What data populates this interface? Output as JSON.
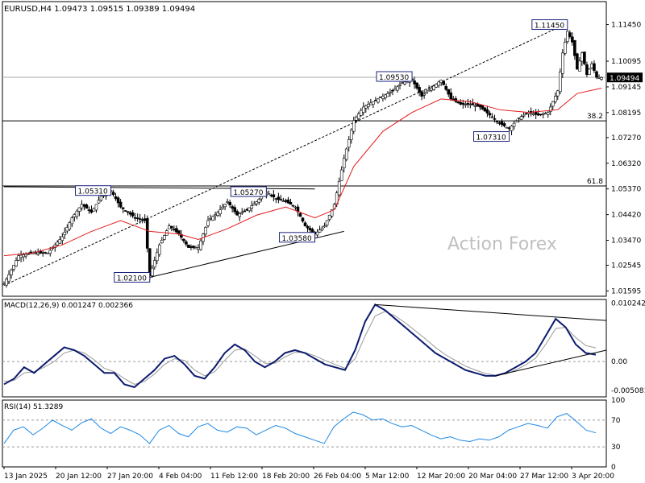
{
  "header": {
    "symbol_line": "EURUSD,H4  1.09473 1.09515 1.09389 1.09494"
  },
  "watermark": "Action Forex",
  "chart_data": [
    {
      "type": "candlestick",
      "panel": "price",
      "ylim": [
        1.014,
        1.123
      ],
      "y_ticks": [
        "1.11450",
        "1.10095",
        "1.09145",
        "1.08195",
        "1.07270",
        "1.06320",
        "1.05370",
        "1.04420",
        "1.03470",
        "1.02545",
        "1.01595"
      ],
      "y_tick_values": [
        1.1145,
        1.10095,
        1.09145,
        1.08195,
        1.0727,
        1.0632,
        1.0537,
        1.0442,
        1.0347,
        1.02545,
        1.01595
      ],
      "current_price_label": "1.09494",
      "current_price": 1.09494,
      "price_path": [
        {
          "t": 0,
          "v": 1.0185
        },
        {
          "t": 3,
          "v": 1.029
        },
        {
          "t": 6,
          "v": 1.03
        },
        {
          "t": 9,
          "v": 1.03
        },
        {
          "t": 12,
          "v": 1.036
        },
        {
          "t": 14,
          "v": 1.043
        },
        {
          "t": 16,
          "v": 1.048
        },
        {
          "t": 18,
          "v": 1.045
        },
        {
          "t": 20,
          "v": 1.051
        },
        {
          "t": 22,
          "v": 1.0531
        },
        {
          "t": 24,
          "v": 1.047
        },
        {
          "t": 27,
          "v": 1.043
        },
        {
          "t": 29,
          "v": 1.042
        },
        {
          "t": 30,
          "v": 1.0215
        },
        {
          "t": 32,
          "v": 1.033
        },
        {
          "t": 34,
          "v": 1.04
        },
        {
          "t": 36,
          "v": 1.037
        },
        {
          "t": 38,
          "v": 1.032
        },
        {
          "t": 40,
          "v": 1.032
        },
        {
          "t": 42,
          "v": 1.042
        },
        {
          "t": 44,
          "v": 1.045
        },
        {
          "t": 46,
          "v": 1.049
        },
        {
          "t": 48,
          "v": 1.044
        },
        {
          "t": 50,
          "v": 1.046
        },
        {
          "t": 52,
          "v": 1.049
        },
        {
          "t": 54,
          "v": 1.0527
        },
        {
          "t": 56,
          "v": 1.05
        },
        {
          "t": 58,
          "v": 1.049
        },
        {
          "t": 60,
          "v": 1.047
        },
        {
          "t": 62,
          "v": 1.04
        },
        {
          "t": 64,
          "v": 1.037
        },
        {
          "t": 66,
          "v": 1.04
        },
        {
          "t": 68,
          "v": 1.048
        },
        {
          "t": 70,
          "v": 1.065
        },
        {
          "t": 72,
          "v": 1.079
        },
        {
          "t": 74,
          "v": 1.084
        },
        {
          "t": 76,
          "v": 1.086
        },
        {
          "t": 78,
          "v": 1.088
        },
        {
          "t": 80,
          "v": 1.09
        },
        {
          "t": 82,
          "v": 1.093
        },
        {
          "t": 84,
          "v": 1.094
        },
        {
          "t": 86,
          "v": 1.088
        },
        {
          "t": 88,
          "v": 1.091
        },
        {
          "t": 90,
          "v": 1.094
        },
        {
          "t": 92,
          "v": 1.087
        },
        {
          "t": 94,
          "v": 1.085
        },
        {
          "t": 96,
          "v": 1.085
        },
        {
          "t": 98,
          "v": 1.084
        },
        {
          "t": 100,
          "v": 1.081
        },
        {
          "t": 102,
          "v": 1.078
        },
        {
          "t": 104,
          "v": 1.076
        },
        {
          "t": 106,
          "v": 1.08
        },
        {
          "t": 108,
          "v": 1.082
        },
        {
          "t": 110,
          "v": 1.081
        },
        {
          "t": 112,
          "v": 1.082
        },
        {
          "t": 114,
          "v": 1.09
        },
        {
          "t": 115,
          "v": 1.104
        },
        {
          "t": 116,
          "v": 1.112
        },
        {
          "t": 117,
          "v": 1.108
        },
        {
          "t": 118,
          "v": 1.098
        },
        {
          "t": 119,
          "v": 1.104
        },
        {
          "t": 120,
          "v": 1.096
        },
        {
          "t": 121,
          "v": 1.1
        },
        {
          "t": 122,
          "v": 1.095
        },
        {
          "t": 123,
          "v": 1.0949
        }
      ],
      "ma_path": [
        {
          "t": 0,
          "v": 1.029
        },
        {
          "t": 6,
          "v": 1.03
        },
        {
          "t": 12,
          "v": 1.033
        },
        {
          "t": 18,
          "v": 1.038
        },
        {
          "t": 24,
          "v": 1.042
        },
        {
          "t": 30,
          "v": 1.038
        },
        {
          "t": 36,
          "v": 1.037
        },
        {
          "t": 40,
          "v": 1.035
        },
        {
          "t": 46,
          "v": 1.039
        },
        {
          "t": 52,
          "v": 1.044
        },
        {
          "t": 58,
          "v": 1.047
        },
        {
          "t": 64,
          "v": 1.043
        },
        {
          "t": 68,
          "v": 1.046
        },
        {
          "t": 72,
          "v": 1.062
        },
        {
          "t": 78,
          "v": 1.075
        },
        {
          "t": 84,
          "v": 1.082
        },
        {
          "t": 90,
          "v": 1.087
        },
        {
          "t": 96,
          "v": 1.086
        },
        {
          "t": 102,
          "v": 1.083
        },
        {
          "t": 108,
          "v": 1.082
        },
        {
          "t": 114,
          "v": 1.083
        },
        {
          "t": 118,
          "v": 1.089
        },
        {
          "t": 123,
          "v": 1.091
        }
      ],
      "levels": [
        {
          "label": "38.2",
          "price": 1.0789
        },
        {
          "label": "61.8",
          "price": 1.0548
        },
        {
          "label": "",
          "price": 1.095
        }
      ],
      "annotations": [
        {
          "label": "1.11450",
          "t": 116,
          "price": 1.1145
        },
        {
          "label": "1.09530",
          "t": 84,
          "price": 1.0953
        },
        {
          "label": "1.07310",
          "t": 104,
          "price": 1.0731
        },
        {
          "label": "1.05310",
          "t": 22,
          "price": 1.0531
        },
        {
          "label": "1.05270",
          "t": 54,
          "price": 1.0527
        },
        {
          "label": "1.03580",
          "t": 64,
          "price": 1.0358
        },
        {
          "label": "1.02100",
          "t": 30,
          "price": 1.021
        }
      ],
      "x_tick_labels": [
        "13 Jan 2025",
        "20 Jan 12:00",
        "27 Jan 20:00",
        "4 Feb 04:00",
        "11 Feb 12:00",
        "18 Feb 20:00",
        "26 Feb 04:00",
        "5 Mar 12:00",
        "12 Mar 20:00",
        "20 Mar 04:00",
        "27 Mar 12:00",
        "3 Apr 20:00"
      ]
    },
    {
      "type": "line",
      "panel": "macd",
      "title": "MACD(12,26,9) 0.001247 0.002366",
      "ylim": [
        -0.0062,
        0.0109
      ],
      "y_ticks": [
        "0.010242",
        "0.00",
        "-0.005081"
      ],
      "y_tick_values": [
        0.010242,
        0.0,
        -0.005081
      ],
      "macd": [
        -0.004,
        -0.003,
        -0.001,
        -0.002,
        -0.0005,
        0.001,
        0.0025,
        0.002,
        0.001,
        -0.0005,
        -0.002,
        -0.002,
        -0.004,
        -0.0045,
        -0.003,
        -0.0015,
        0.0005,
        0.001,
        -0.0005,
        -0.0025,
        -0.003,
        -0.001,
        0.0015,
        0.003,
        0.002,
        0.0,
        -0.001,
        0.0,
        0.0015,
        0.002,
        0.0015,
        0.0005,
        -0.0005,
        -0.001,
        -0.0015,
        0.002,
        0.007,
        0.01,
        0.009,
        0.0075,
        0.006,
        0.0045,
        0.003,
        0.0015,
        0.0005,
        -0.0005,
        -0.0015,
        -0.002,
        -0.0025,
        -0.0025,
        -0.002,
        -0.001,
        0.0,
        0.0015,
        0.0045,
        0.0075,
        0.006,
        0.003,
        0.0015,
        0.0012
      ],
      "signal": [
        -0.0035,
        -0.0033,
        -0.002,
        -0.0018,
        -0.001,
        0.0,
        0.0015,
        0.002,
        0.0015,
        0.0003,
        -0.0012,
        -0.0018,
        -0.003,
        -0.004,
        -0.0035,
        -0.0022,
        -0.0005,
        0.0005,
        0.0002,
        -0.0015,
        -0.0025,
        -0.0018,
        0.0002,
        0.002,
        0.0022,
        0.001,
        -0.0003,
        -0.0003,
        0.0008,
        0.0016,
        0.0016,
        0.001,
        0.0002,
        -0.0005,
        -0.0012,
        0.0005,
        0.0045,
        0.008,
        0.0088,
        0.008,
        0.0068,
        0.0054,
        0.004,
        0.0025,
        0.0012,
        0.0002,
        -0.0008,
        -0.0015,
        -0.0021,
        -0.0024,
        -0.0022,
        -0.0015,
        -0.0006,
        0.0006,
        0.003,
        0.0058,
        0.006,
        0.0042,
        0.0028,
        0.0024
      ]
    },
    {
      "type": "line",
      "panel": "rsi",
      "title": "RSI(14) 51.3289",
      "ylim": [
        0,
        100
      ],
      "y_ticks": [
        "100",
        "70",
        "30",
        "0"
      ],
      "y_tick_values": [
        100,
        70,
        30,
        0
      ],
      "rsi": [
        35,
        55,
        60,
        48,
        58,
        70,
        62,
        55,
        66,
        72,
        58,
        50,
        60,
        55,
        48,
        35,
        55,
        62,
        50,
        45,
        60,
        65,
        55,
        52,
        60,
        58,
        48,
        55,
        62,
        58,
        50,
        45,
        40,
        35,
        60,
        72,
        82,
        78,
        70,
        72,
        65,
        60,
        62,
        55,
        48,
        42,
        45,
        40,
        38,
        42,
        40,
        45,
        55,
        60,
        65,
        62,
        58,
        75,
        80,
        68,
        55,
        51
      ]
    }
  ]
}
